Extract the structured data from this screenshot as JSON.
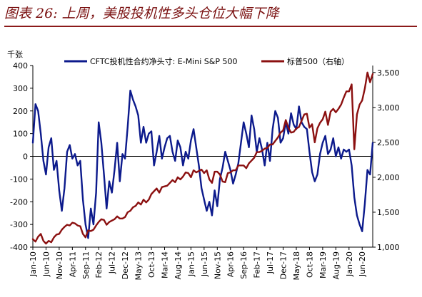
{
  "page": {
    "figure_title": "图表 26: 上周，美股投机性多头仓位大幅下降"
  },
  "chart_data": {
    "type": "line",
    "title": "图表 26: 上周，美股投机性多头仓位大幅下降",
    "left_axis": {
      "unit_label": "千张",
      "ylim": [
        -400,
        400
      ],
      "ticks": [
        -400,
        -300,
        -200,
        -100,
        0,
        100,
        200,
        300,
        400
      ],
      "tick_labels": [
        "-400",
        "-300",
        "-200",
        "-100",
        "0",
        "100",
        "200",
        "300",
        "400"
      ]
    },
    "right_axis": {
      "ylim": [
        1000,
        3600
      ],
      "ticks": [
        1000,
        1500,
        2000,
        2500,
        3000,
        3500
      ],
      "tick_labels": [
        "1,000",
        "1,500",
        "2,000",
        "2,500",
        "3,000",
        "3,500"
      ]
    },
    "x_axis": {
      "range": [
        "2010-01",
        "2020-10"
      ],
      "ticks": [
        "2010-01",
        "2010-06",
        "2010-11",
        "2011-04",
        "2011-09",
        "2012-02",
        "2012-07",
        "2012-12",
        "2013-05",
        "2013-10",
        "2014-03",
        "2014-08",
        "2015-01",
        "2015-06",
        "2015-11",
        "2016-04",
        "2016-09",
        "2017-02",
        "2017-07",
        "2017-12",
        "2018-05",
        "2018-10",
        "2019-03",
        "2019-08",
        "2020-01",
        "2020-06"
      ],
      "tick_labels": [
        "Jan-10",
        "Jun-10",
        "Nov-10",
        "Apr-11",
        "Sep-11",
        "Feb-12",
        "Jul-12",
        "Dec-12",
        "May-13",
        "Oct-13",
        "Mar-14",
        "Aug-14",
        "Jan-15",
        "Jun-15",
        "Nov-15",
        "Apr-16",
        "Sep-16",
        "Feb-17",
        "Jul-17",
        "Dec-17",
        "May-18",
        "Oct-18",
        "Mar-19",
        "Aug-19",
        "Jan-20",
        "Jun-20"
      ]
    },
    "legend_position": "top",
    "grid": false,
    "series": [
      {
        "name": "CFTC投机性合约净头寸: E-Mini S&P 500",
        "axis": "left",
        "color": "#0c1a8c",
        "points": [
          [
            "2010-01",
            60
          ],
          [
            "2010-02",
            230
          ],
          [
            "2010-03",
            200
          ],
          [
            "2010-04",
            100
          ],
          [
            "2010-05",
            -20
          ],
          [
            "2010-06",
            -80
          ],
          [
            "2010-07",
            40
          ],
          [
            "2010-08",
            80
          ],
          [
            "2010-09",
            -60
          ],
          [
            "2010-10",
            -20
          ],
          [
            "2010-11",
            -150
          ],
          [
            "2010-12",
            -240
          ],
          [
            "2011-01",
            -140
          ],
          [
            "2011-02",
            20
          ],
          [
            "2011-03",
            50
          ],
          [
            "2011-04",
            -10
          ],
          [
            "2011-05",
            10
          ],
          [
            "2011-06",
            -40
          ],
          [
            "2011-07",
            -20
          ],
          [
            "2011-08",
            -190
          ],
          [
            "2011-09",
            -300
          ],
          [
            "2011-10",
            -360
          ],
          [
            "2011-11",
            -230
          ],
          [
            "2011-12",
            -300
          ],
          [
            "2012-01",
            -160
          ],
          [
            "2012-02",
            150
          ],
          [
            "2012-03",
            60
          ],
          [
            "2012-04",
            -80
          ],
          [
            "2012-05",
            -230
          ],
          [
            "2012-06",
            -110
          ],
          [
            "2012-07",
            -160
          ],
          [
            "2012-08",
            -60
          ],
          [
            "2012-09",
            60
          ],
          [
            "2012-10",
            -110
          ],
          [
            "2012-11",
            10
          ],
          [
            "2012-12",
            -10
          ],
          [
            "2013-01",
            130
          ],
          [
            "2013-02",
            290
          ],
          [
            "2013-03",
            250
          ],
          [
            "2013-04",
            220
          ],
          [
            "2013-05",
            180
          ],
          [
            "2013-06",
            60
          ],
          [
            "2013-07",
            130
          ],
          [
            "2013-08",
            60
          ],
          [
            "2013-09",
            100
          ],
          [
            "2013-10",
            110
          ],
          [
            "2013-11",
            -40
          ],
          [
            "2013-12",
            20
          ],
          [
            "2014-01",
            90
          ],
          [
            "2014-02",
            -10
          ],
          [
            "2014-03",
            40
          ],
          [
            "2014-04",
            80
          ],
          [
            "2014-05",
            90
          ],
          [
            "2014-06",
            20
          ],
          [
            "2014-07",
            -20
          ],
          [
            "2014-08",
            70
          ],
          [
            "2014-09",
            40
          ],
          [
            "2014-10",
            -40
          ],
          [
            "2014-11",
            20
          ],
          [
            "2014-12",
            -10
          ],
          [
            "2015-01",
            70
          ],
          [
            "2015-02",
            120
          ],
          [
            "2015-03",
            40
          ],
          [
            "2015-04",
            -40
          ],
          [
            "2015-05",
            -140
          ],
          [
            "2015-06",
            -190
          ],
          [
            "2015-07",
            -240
          ],
          [
            "2015-08",
            -200
          ],
          [
            "2015-09",
            -260
          ],
          [
            "2015-10",
            -150
          ],
          [
            "2015-11",
            -220
          ],
          [
            "2015-12",
            -100
          ],
          [
            "2016-01",
            -50
          ],
          [
            "2016-02",
            20
          ],
          [
            "2016-03",
            -20
          ],
          [
            "2016-04",
            -60
          ],
          [
            "2016-05",
            -120
          ],
          [
            "2016-06",
            -80
          ],
          [
            "2016-07",
            -30
          ],
          [
            "2016-08",
            60
          ],
          [
            "2016-09",
            150
          ],
          [
            "2016-10",
            100
          ],
          [
            "2016-11",
            40
          ],
          [
            "2016-12",
            180
          ],
          [
            "2017-01",
            120
          ],
          [
            "2017-02",
            20
          ],
          [
            "2017-03",
            80
          ],
          [
            "2017-04",
            30
          ],
          [
            "2017-05",
            -40
          ],
          [
            "2017-06",
            60
          ],
          [
            "2017-07",
            -20
          ],
          [
            "2017-08",
            120
          ],
          [
            "2017-09",
            200
          ],
          [
            "2017-10",
            170
          ],
          [
            "2017-11",
            60
          ],
          [
            "2017-12",
            80
          ],
          [
            "2018-01",
            150
          ],
          [
            "2018-02",
            100
          ],
          [
            "2018-03",
            190
          ],
          [
            "2018-04",
            140
          ],
          [
            "2018-05",
            120
          ],
          [
            "2018-06",
            220
          ],
          [
            "2018-07",
            150
          ],
          [
            "2018-08",
            130
          ],
          [
            "2018-09",
            120
          ],
          [
            "2018-10",
            20
          ],
          [
            "2018-11",
            -70
          ],
          [
            "2018-12",
            -110
          ],
          [
            "2019-01",
            -80
          ],
          [
            "2019-02",
            10
          ],
          [
            "2019-03",
            60
          ],
          [
            "2019-04",
            90
          ],
          [
            "2019-05",
            10
          ],
          [
            "2019-06",
            30
          ],
          [
            "2019-07",
            80
          ],
          [
            "2019-08",
            0
          ],
          [
            "2019-09",
            40
          ],
          [
            "2019-10",
            -10
          ],
          [
            "2019-11",
            30
          ],
          [
            "2019-12",
            20
          ],
          [
            "2020-01",
            30
          ],
          [
            "2020-02",
            -40
          ],
          [
            "2020-03",
            -180
          ],
          [
            "2020-04",
            -260
          ],
          [
            "2020-05",
            -300
          ],
          [
            "2020-06",
            -330
          ],
          [
            "2020-07",
            -210
          ],
          [
            "2020-08",
            -60
          ],
          [
            "2020-09",
            -80
          ],
          [
            "2020-10",
            60
          ]
        ]
      },
      {
        "name": "标普500（右轴）",
        "axis": "right",
        "color": "#8b1010",
        "points": [
          [
            "2010-01",
            1115
          ],
          [
            "2010-02",
            1080
          ],
          [
            "2010-03",
            1150
          ],
          [
            "2010-04",
            1190
          ],
          [
            "2010-05",
            1090
          ],
          [
            "2010-06",
            1050
          ],
          [
            "2010-07",
            1090
          ],
          [
            "2010-08",
            1070
          ],
          [
            "2010-09",
            1140
          ],
          [
            "2010-10",
            1180
          ],
          [
            "2010-11",
            1190
          ],
          [
            "2010-12",
            1250
          ],
          [
            "2011-01",
            1290
          ],
          [
            "2011-02",
            1320
          ],
          [
            "2011-03",
            1310
          ],
          [
            "2011-04",
            1350
          ],
          [
            "2011-05",
            1340
          ],
          [
            "2011-06",
            1310
          ],
          [
            "2011-07",
            1300
          ],
          [
            "2011-08",
            1190
          ],
          [
            "2011-09",
            1140
          ],
          [
            "2011-10",
            1240
          ],
          [
            "2011-11",
            1230
          ],
          [
            "2011-12",
            1250
          ],
          [
            "2012-01",
            1310
          ],
          [
            "2012-02",
            1360
          ],
          [
            "2012-03",
            1400
          ],
          [
            "2012-04",
            1390
          ],
          [
            "2012-05",
            1320
          ],
          [
            "2012-06",
            1360
          ],
          [
            "2012-07",
            1380
          ],
          [
            "2012-08",
            1400
          ],
          [
            "2012-09",
            1440
          ],
          [
            "2012-10",
            1410
          ],
          [
            "2012-11",
            1410
          ],
          [
            "2012-12",
            1430
          ],
          [
            "2013-01",
            1500
          ],
          [
            "2013-02",
            1520
          ],
          [
            "2013-03",
            1570
          ],
          [
            "2013-04",
            1590
          ],
          [
            "2013-05",
            1640
          ],
          [
            "2013-06",
            1610
          ],
          [
            "2013-07",
            1680
          ],
          [
            "2013-08",
            1640
          ],
          [
            "2013-09",
            1680
          ],
          [
            "2013-10",
            1760
          ],
          [
            "2013-11",
            1800
          ],
          [
            "2013-12",
            1840
          ],
          [
            "2014-01",
            1780
          ],
          [
            "2014-02",
            1860
          ],
          [
            "2014-03",
            1870
          ],
          [
            "2014-04",
            1880
          ],
          [
            "2014-05",
            1920
          ],
          [
            "2014-06",
            1960
          ],
          [
            "2014-07",
            1930
          ],
          [
            "2014-08",
            2000
          ],
          [
            "2014-09",
            1970
          ],
          [
            "2014-10",
            2010
          ],
          [
            "2014-11",
            2070
          ],
          [
            "2014-12",
            2060
          ],
          [
            "2015-01",
            2000
          ],
          [
            "2015-02",
            2100
          ],
          [
            "2015-03",
            2070
          ],
          [
            "2015-04",
            2090
          ],
          [
            "2015-05",
            2110
          ],
          [
            "2015-06",
            2060
          ],
          [
            "2015-07",
            2100
          ],
          [
            "2015-08",
            1970
          ],
          [
            "2015-09",
            1920
          ],
          [
            "2015-10",
            2080
          ],
          [
            "2015-11",
            2080
          ],
          [
            "2015-12",
            2040
          ],
          [
            "2016-01",
            1940
          ],
          [
            "2016-02",
            1930
          ],
          [
            "2016-03",
            2060
          ],
          [
            "2016-04",
            2070
          ],
          [
            "2016-05",
            2100
          ],
          [
            "2016-06",
            2100
          ],
          [
            "2016-07",
            2170
          ],
          [
            "2016-08",
            2170
          ],
          [
            "2016-09",
            2170
          ],
          [
            "2016-10",
            2130
          ],
          [
            "2016-11",
            2200
          ],
          [
            "2016-12",
            2240
          ],
          [
            "2017-01",
            2280
          ],
          [
            "2017-02",
            2360
          ],
          [
            "2017-03",
            2360
          ],
          [
            "2017-04",
            2380
          ],
          [
            "2017-05",
            2410
          ],
          [
            "2017-06",
            2420
          ],
          [
            "2017-07",
            2470
          ],
          [
            "2017-08",
            2470
          ],
          [
            "2017-09",
            2520
          ],
          [
            "2017-10",
            2570
          ],
          [
            "2017-11",
            2640
          ],
          [
            "2017-12",
            2670
          ],
          [
            "2018-01",
            2820
          ],
          [
            "2018-02",
            2710
          ],
          [
            "2018-03",
            2640
          ],
          [
            "2018-04",
            2650
          ],
          [
            "2018-05",
            2700
          ],
          [
            "2018-06",
            2720
          ],
          [
            "2018-07",
            2810
          ],
          [
            "2018-08",
            2900
          ],
          [
            "2018-09",
            2910
          ],
          [
            "2018-10",
            2710
          ],
          [
            "2018-11",
            2760
          ],
          [
            "2018-12",
            2500
          ],
          [
            "2019-01",
            2700
          ],
          [
            "2019-02",
            2780
          ],
          [
            "2019-03",
            2830
          ],
          [
            "2019-04",
            2940
          ],
          [
            "2019-05",
            2750
          ],
          [
            "2019-06",
            2940
          ],
          [
            "2019-07",
            2980
          ],
          [
            "2019-08",
            2930
          ],
          [
            "2019-09",
            2980
          ],
          [
            "2019-10",
            3040
          ],
          [
            "2019-11",
            3140
          ],
          [
            "2019-12",
            3230
          ],
          [
            "2020-01",
            3230
          ],
          [
            "2020-02",
            3330
          ],
          [
            "2020-03",
            2400
          ],
          [
            "2020-04",
            2900
          ],
          [
            "2020-05",
            3040
          ],
          [
            "2020-06",
            3100
          ],
          [
            "2020-07",
            3270
          ],
          [
            "2020-08",
            3500
          ],
          [
            "2020-09",
            3360
          ],
          [
            "2020-10",
            3480
          ]
        ]
      }
    ]
  }
}
